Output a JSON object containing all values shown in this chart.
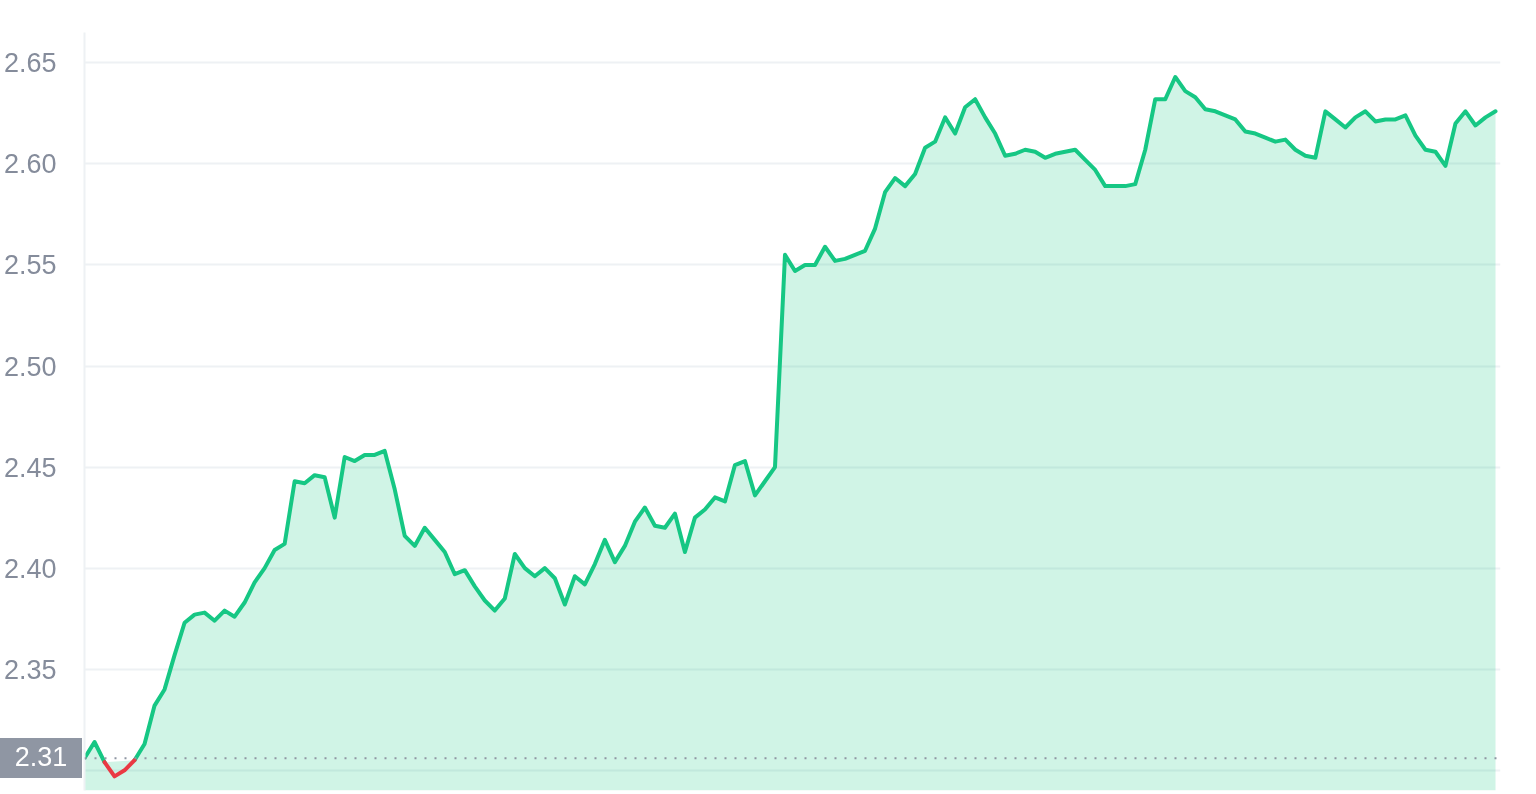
{
  "chart_data": {
    "type": "area",
    "categories": [
      null,
      null,
      null,
      null,
      null,
      null,
      null,
      null,
      null,
      null,
      null,
      null,
      null,
      null,
      null,
      null,
      null,
      null,
      null,
      null,
      null,
      null,
      null,
      null,
      null,
      null,
      null,
      null,
      null,
      null,
      null,
      null,
      null,
      null,
      null,
      null,
      null,
      null,
      null,
      null,
      null,
      null,
      null,
      null,
      null,
      null,
      null,
      null,
      null,
      null,
      null,
      null,
      null,
      null,
      null,
      null,
      null,
      null,
      null,
      null,
      null,
      null,
      null,
      null,
      null,
      null,
      null,
      null,
      null,
      null,
      null,
      null,
      null,
      null,
      null,
      null,
      null,
      null,
      null,
      null,
      null,
      null,
      null,
      null,
      null,
      null,
      null,
      null,
      null,
      null,
      null,
      null,
      null,
      null,
      null,
      null,
      null,
      null,
      null,
      null,
      null,
      null,
      null,
      null,
      null,
      null,
      null,
      null,
      null,
      null,
      null,
      null,
      null,
      null,
      null,
      null,
      null,
      null,
      null,
      null,
      null,
      null,
      null,
      null,
      null,
      null,
      null,
      null,
      null,
      null,
      null,
      null,
      null,
      null,
      null,
      null,
      null,
      null,
      null,
      null,
      null,
      null
    ],
    "series": [
      {
        "color": "#16c784",
        "values": [
          2.306,
          2.314,
          2.304,
          null,
          null,
          2.305,
          2.313,
          2.332,
          2.34,
          2.357,
          2.373,
          2.377,
          2.378,
          2.374,
          2.379,
          2.376,
          2.383,
          2.393,
          2.4,
          2.409,
          2.412,
          2.443,
          2.442,
          2.446,
          2.445,
          2.425,
          2.455,
          2.453,
          2.456,
          2.456,
          2.458,
          2.439,
          2.416,
          2.411,
          2.42,
          2.414,
          2.408,
          2.397,
          2.399,
          2.391,
          2.384,
          2.379,
          2.385,
          2.407,
          2.4,
          2.396,
          2.4,
          2.395,
          2.382,
          2.396,
          2.392,
          2.402,
          2.414,
          2.403,
          2.411,
          2.423,
          2.43,
          2.421,
          2.42,
          2.427,
          2.408,
          2.425,
          2.429,
          2.435,
          2.433,
          2.451,
          2.453,
          2.436,
          2.443,
          2.45,
          2.555,
          2.547,
          2.55,
          2.55,
          2.559,
          2.552,
          2.553,
          2.555,
          2.557,
          2.568,
          2.586,
          2.593,
          2.589,
          2.595,
          2.608,
          2.611,
          2.623,
          2.615,
          2.628,
          2.632,
          2.623,
          2.615,
          2.604,
          2.605,
          2.607,
          2.606,
          2.603,
          2.605,
          2.606,
          2.607,
          2.602,
          2.597,
          2.589,
          2.589,
          2.589,
          2.59,
          2.607,
          2.632,
          2.632,
          2.643,
          2.636,
          2.633,
          2.627,
          2.626,
          2.624,
          2.622,
          2.616,
          2.615,
          2.613,
          2.611,
          2.612,
          2.607,
          2.604,
          2.603,
          2.626,
          2.622,
          2.618,
          2.623,
          2.626,
          2.621,
          2.622,
          2.622,
          2.624,
          2.614,
          2.607,
          2.606,
          2.599,
          2.62,
          2.626,
          2.619,
          2.623,
          2.626
        ]
      },
      {
        "type": "line",
        "color": "#ea3943",
        "values": [
          null,
          null,
          2.304,
          2.297,
          2.3,
          2.305,
          null,
          null,
          null,
          null,
          null,
          null,
          null,
          null,
          null,
          null,
          null,
          null,
          null,
          null,
          null,
          null,
          null,
          null,
          null,
          null,
          null,
          null,
          null,
          null,
          null,
          null,
          null,
          null,
          null,
          null,
          null,
          null,
          null,
          null,
          null,
          null,
          null,
          null,
          null,
          null,
          null,
          null,
          null,
          null,
          null,
          null,
          null,
          null,
          null,
          null,
          null,
          null,
          null,
          null,
          null,
          null,
          null,
          null,
          null,
          null,
          null,
          null,
          null,
          null,
          null,
          null,
          null,
          null,
          null,
          null,
          null,
          null,
          null,
          null,
          null,
          null,
          null,
          null,
          null,
          null,
          null,
          null,
          null,
          null,
          null,
          null,
          null,
          null,
          null,
          null,
          null,
          null,
          null,
          null,
          null,
          null,
          null,
          null,
          null,
          null,
          null,
          null,
          null,
          null,
          null,
          null,
          null,
          null,
          null,
          null,
          null,
          null,
          null,
          null,
          null,
          null,
          null,
          null,
          null,
          null,
          null,
          null,
          null,
          null,
          null,
          null,
          null,
          null,
          null,
          null,
          null,
          null,
          null,
          null,
          null,
          null
        ]
      }
    ],
    "ylim": [
      2.29,
      2.665
    ],
    "yticks": [
      {
        "value": 2.3,
        "label": null
      },
      {
        "value": 2.35,
        "label": "2.35"
      },
      {
        "value": 2.4,
        "label": "2.40"
      },
      {
        "value": 2.45,
        "label": "2.45"
      },
      {
        "value": 2.5,
        "label": "2.50"
      },
      {
        "value": 2.55,
        "label": "2.55"
      },
      {
        "value": 2.6,
        "label": "2.60"
      },
      {
        "value": 2.65,
        "label": "2.65"
      }
    ],
    "tick_labels": "y",
    "grid": "y",
    "line_style": "solid",
    "ref_lines": [
      {
        "axis": "y",
        "value": 2.306,
        "label": "2.31",
        "color": "#8f96a3",
        "line_style": "dotted"
      }
    ]
  }
}
